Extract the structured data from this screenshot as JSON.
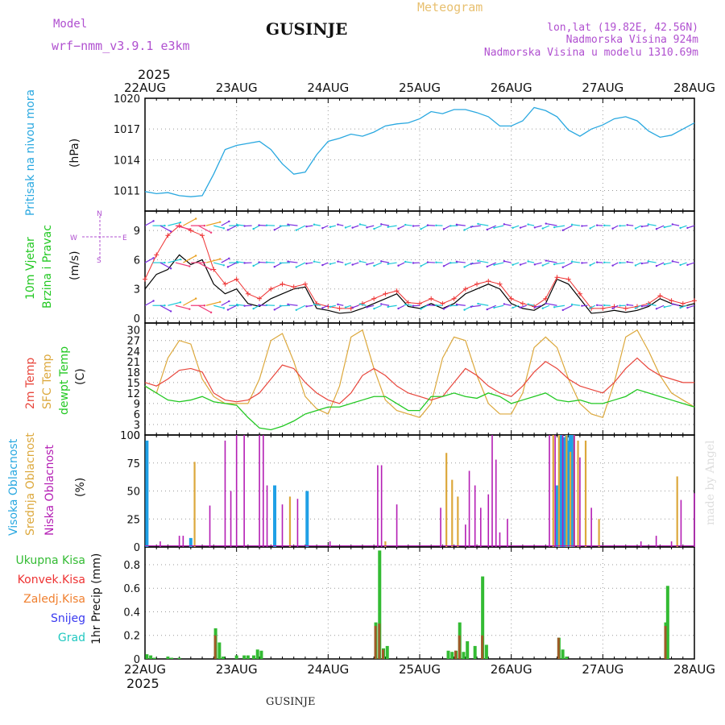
{
  "header": {
    "model_label": "Model",
    "model_name": "wrf−nmm_v3.9.1 e3km",
    "station": "GUSINJE",
    "meteogram": "Meteogram",
    "lonlat": "lon,lat (19.82E, 42.56N)",
    "altitude": "Nadmorska Visina 924m",
    "model_altitude": "Nadmorska Visina u modelu 1310.69m",
    "year_top": "2025",
    "year_bottom": "2025",
    "footer_station": "GUSINJE",
    "watermark": "made by Angel"
  },
  "colors": {
    "pressure": "#29a8e0",
    "wind_speed": "#000000",
    "wind_gust": "#ee3333",
    "t2m": "#e8463c",
    "sfc": "#dca83c",
    "dewpt": "#22c822",
    "high_cloud": "#1fa0e6",
    "mid_cloud": "#dca83c",
    "low_cloud": "#b41eb4",
    "total_precip": "#33bb33",
    "conv_precip": "#a05a28"
  },
  "chart_data": [
    {
      "id": "pressure",
      "type": "line",
      "title": "Pritisak na nivou mora",
      "ylabel": "(hPa)",
      "ylim": [
        1009,
        1020
      ],
      "yticks": [
        1011,
        1014,
        1017,
        1020
      ],
      "x": [
        0,
        3,
        6,
        9,
        12,
        15,
        18,
        21,
        24,
        27,
        30,
        33,
        36,
        39,
        42,
        45,
        48,
        51,
        54,
        57,
        60,
        63,
        66,
        69,
        72,
        75,
        78,
        81,
        84,
        87,
        90,
        93,
        96,
        99,
        102,
        105,
        108,
        111,
        114,
        117,
        120,
        123,
        126,
        129,
        132,
        135,
        138,
        141,
        144
      ],
      "series": [
        {
          "name": "MSLP",
          "values": [
            1010.9,
            1010.7,
            1010.8,
            1010.5,
            1010.4,
            1010.5,
            1012.6,
            1015.0,
            1015.4,
            1015.6,
            1015.8,
            1015.0,
            1013.6,
            1012.6,
            1012.8,
            1014.5,
            1015.8,
            1016.1,
            1016.5,
            1016.3,
            1016.7,
            1017.3,
            1017.5,
            1017.6,
            1018.0,
            1018.7,
            1018.5,
            1018.9,
            1018.9,
            1018.6,
            1018.2,
            1017.3,
            1017.3,
            1017.8,
            1019.1,
            1018.8,
            1018.2,
            1016.9,
            1016.3,
            1017.0,
            1017.4,
            1018.0,
            1018.2,
            1017.8,
            1016.8,
            1016.2,
            1016.4,
            1017.0,
            1017.6
          ]
        }
      ]
    },
    {
      "id": "wind",
      "type": "line",
      "title": "10m Vjetar Brzina i Pravac",
      "ylabel": "(m/s)",
      "ylim": [
        -0.5,
        11
      ],
      "yticks": [
        0,
        3,
        6,
        9
      ],
      "x": [
        0,
        3,
        6,
        9,
        12,
        15,
        18,
        21,
        24,
        27,
        30,
        33,
        36,
        39,
        42,
        45,
        48,
        51,
        54,
        57,
        60,
        63,
        66,
        69,
        72,
        75,
        78,
        81,
        84,
        87,
        90,
        93,
        96,
        99,
        102,
        105,
        108,
        111,
        114,
        117,
        120,
        123,
        126,
        129,
        132,
        135,
        138,
        141,
        144
      ],
      "series": [
        {
          "name": "Speed",
          "values": [
            3.0,
            4.5,
            5.0,
            6.5,
            5.5,
            6.0,
            3.5,
            2.5,
            3.0,
            1.5,
            1.2,
            2.0,
            2.5,
            3.0,
            3.2,
            1.0,
            0.8,
            0.5,
            0.6,
            1.0,
            1.5,
            2.0,
            2.5,
            1.2,
            1.0,
            1.5,
            1.0,
            1.5,
            2.5,
            3.0,
            3.5,
            3.0,
            1.5,
            1.0,
            0.8,
            1.5,
            4.0,
            3.5,
            2.0,
            0.5,
            0.6,
            0.8,
            0.6,
            0.8,
            1.2,
            2.0,
            1.5,
            1.2,
            1.5
          ]
        },
        {
          "name": "Gust",
          "values": [
            4.0,
            6.5,
            8.5,
            9.5,
            9.0,
            8.5,
            5.0,
            3.5,
            4.0,
            2.5,
            2.0,
            3.0,
            3.5,
            3.2,
            3.5,
            1.5,
            1.2,
            1.0,
            1.0,
            1.5,
            2.0,
            2.5,
            2.8,
            1.6,
            1.5,
            2.0,
            1.5,
            2.0,
            3.0,
            3.5,
            3.8,
            3.5,
            2.0,
            1.5,
            1.2,
            2.0,
            4.2,
            4.0,
            2.5,
            1.0,
            1.0,
            1.2,
            1.0,
            1.2,
            1.5,
            2.3,
            1.8,
            1.5,
            1.8
          ]
        }
      ]
    },
    {
      "id": "temperature",
      "type": "line",
      "title": "2m Temp / SFC Temp / dewpt Temp",
      "ylabel": "(C)",
      "ylim": [
        0,
        32
      ],
      "yticks": [
        0,
        3,
        6,
        9,
        12,
        15,
        18,
        21,
        24,
        27,
        30
      ],
      "x": [
        0,
        3,
        6,
        9,
        12,
        15,
        18,
        21,
        24,
        27,
        30,
        33,
        36,
        39,
        42,
        45,
        48,
        51,
        54,
        57,
        60,
        63,
        66,
        69,
        72,
        75,
        78,
        81,
        84,
        87,
        90,
        93,
        96,
        99,
        102,
        105,
        108,
        111,
        114,
        117,
        120,
        123,
        126,
        129,
        132,
        135,
        138,
        141,
        144
      ],
      "series": [
        {
          "name": "2m Temp",
          "values": [
            15,
            14,
            16,
            18.5,
            19,
            18,
            12,
            10,
            9.5,
            10,
            12,
            16,
            20,
            19,
            15,
            12,
            10,
            9,
            12,
            17,
            19,
            17,
            14,
            12,
            11,
            10,
            11,
            15,
            19,
            17,
            14,
            12,
            11,
            14,
            18,
            21,
            19,
            16,
            14,
            13,
            12,
            15,
            19,
            22,
            19,
            17,
            16,
            15,
            15
          ]
        },
        {
          "name": "SFC Temp",
          "values": [
            14,
            12,
            22,
            27,
            26,
            16,
            11,
            9,
            9,
            9,
            16,
            27,
            29,
            21,
            11,
            7.5,
            6,
            14,
            28,
            30,
            19,
            10,
            7,
            6,
            5,
            9,
            22,
            28,
            27,
            17,
            9,
            6,
            6,
            12,
            25,
            28,
            25,
            16,
            9,
            6,
            5,
            15,
            28,
            30,
            24,
            17,
            12,
            10,
            8
          ]
        },
        {
          "name": "dewpt Temp",
          "values": [
            14,
            12,
            10,
            9.5,
            10,
            11,
            9.5,
            9,
            8.5,
            5,
            2,
            1.5,
            2.5,
            4,
            6,
            7,
            8,
            8,
            9,
            10,
            11,
            11,
            9,
            7,
            7,
            11,
            11,
            12,
            11,
            10.5,
            12,
            11,
            9,
            10,
            11,
            12,
            10,
            9.5,
            10,
            9,
            9,
            10,
            11,
            13,
            12,
            11,
            10,
            9,
            8
          ]
        }
      ]
    },
    {
      "id": "cloud",
      "type": "bar",
      "title": "Visoka / Srednja / Niska Oblacnost",
      "ylabel": "(%)",
      "ylim": [
        0,
        100
      ],
      "yticks": [
        0,
        25,
        50,
        75,
        100
      ],
      "series": [
        {
          "name": "Visoka Oblacnost",
          "x": [
            0.5,
            12,
            34,
            42.5,
            108,
            109,
            110,
            110.5,
            111,
            111.5,
            112
          ],
          "values": [
            95,
            8,
            55,
            50,
            55,
            100,
            98,
            100,
            95,
            100,
            100
          ]
        },
        {
          "name": "Srednja Oblacnost",
          "x": [
            13,
            38,
            63,
            79,
            80.5,
            82,
            107,
            108.5,
            110.5,
            111.5,
            112.5,
            113.5,
            115.5,
            119,
            139.5
          ],
          "values": [
            76,
            45,
            5,
            84,
            60,
            45,
            100,
            100,
            100,
            85,
            100,
            95,
            95,
            25,
            63
          ]
        },
        {
          "name": "Niska Oblacnost",
          "x": [
            4,
            9,
            10,
            17,
            21,
            22.5,
            24,
            26,
            30,
            31,
            32,
            36,
            40,
            48.5,
            61,
            62,
            66,
            77.5,
            84,
            85,
            86.5,
            88,
            90,
            91,
            92,
            93,
            95,
            106,
            107.5,
            109.5,
            112.5,
            114,
            117,
            130,
            134,
            138,
            140.5,
            144
          ],
          "values": [
            5,
            10,
            10,
            37,
            95,
            50,
            100,
            100,
            100,
            100,
            55,
            38,
            43,
            5,
            73,
            73,
            38,
            35,
            20,
            68,
            55,
            35,
            47,
            100,
            78,
            13,
            25,
            100,
            100,
            100,
            100,
            80,
            35,
            5,
            10,
            5,
            42,
            48
          ]
        }
      ]
    },
    {
      "id": "precip",
      "type": "bar",
      "title": "1hr Precip",
      "ylabel": "(mm)",
      "ylim": [
        0,
        0.95
      ],
      "yticks": [
        0,
        0.2,
        0.4,
        0.6,
        0.8
      ],
      "legend": [
        "Ukupna Kisa",
        "Konvek.Kisa",
        "Zaledj.Kisa",
        "Snijeg",
        "Grad"
      ],
      "series": [
        {
          "name": "Ukupna Kisa",
          "x": [
            0.5,
            1.5,
            2.5,
            6,
            7,
            9,
            18.5,
            19.5,
            20.5,
            24,
            26,
            27,
            28.5,
            29.5,
            30.5,
            60.5,
            61.5,
            62.5,
            63.5,
            79.5,
            80.5,
            81.5,
            82.5,
            83.5,
            84.5,
            86.5,
            88.5,
            89.5,
            108.5,
            109.5,
            110.5,
            136.5,
            137
          ],
          "values": [
            0.04,
            0.03,
            0.01,
            0.02,
            0.01,
            0.01,
            0.26,
            0.14,
            0.02,
            0.03,
            0.03,
            0.03,
            0.03,
            0.08,
            0.07,
            0.31,
            0.92,
            0.09,
            0.11,
            0.07,
            0.06,
            0.07,
            0.31,
            0.06,
            0.15,
            0.11,
            0.7,
            0.12,
            0.18,
            0.08,
            0.02,
            0.31,
            0.62
          ]
        },
        {
          "name": "Konvek.Kisa",
          "x": [
            18.5,
            60.5,
            61.5,
            62.5,
            81.5,
            82.5,
            88.5,
            108.5,
            136.5
          ],
          "values": [
            0.2,
            0.28,
            0.3,
            0.08,
            0.07,
            0.2,
            0.2,
            0.18,
            0.28
          ]
        }
      ]
    }
  ],
  "xaxis": {
    "top_labels": [
      "22AUG",
      "23AUG",
      "24AUG",
      "25AUG",
      "26AUG",
      "27AUG",
      "28AUG"
    ],
    "bottom_labels": [
      "22AUG",
      "23AUG",
      "24AUG",
      "25AUG",
      "26AUG",
      "27AUG",
      "28AUG"
    ]
  },
  "left_labels": {
    "pressure": "Pritisak na nivou mora",
    "pressure_unit": "(hPa)",
    "wind_1": "10m Vjetar",
    "wind_2": "Brzina i Pravac",
    "wind_unit": "(m/s)",
    "compass_n": "N",
    "compass_s": "S",
    "compass_e": "E",
    "compass_w": "W",
    "temp_t2m": "2m Temp",
    "temp_sfc": "SFC Temp",
    "temp_dew": "dewpt Temp",
    "temp_unit": "(C)",
    "cloud_high": "Visoka Oblacnost",
    "cloud_mid": "Srednja Oblacnost",
    "cloud_low": "Niska Oblacnost",
    "cloud_unit": "(%)",
    "precip_legend": [
      "Ukupna Kisa",
      "Konvek.Kisa",
      "Zaledj.Kisa",
      "Snijeg",
      "Grad"
    ],
    "precip_axis": "1hr Precip (mm)"
  }
}
